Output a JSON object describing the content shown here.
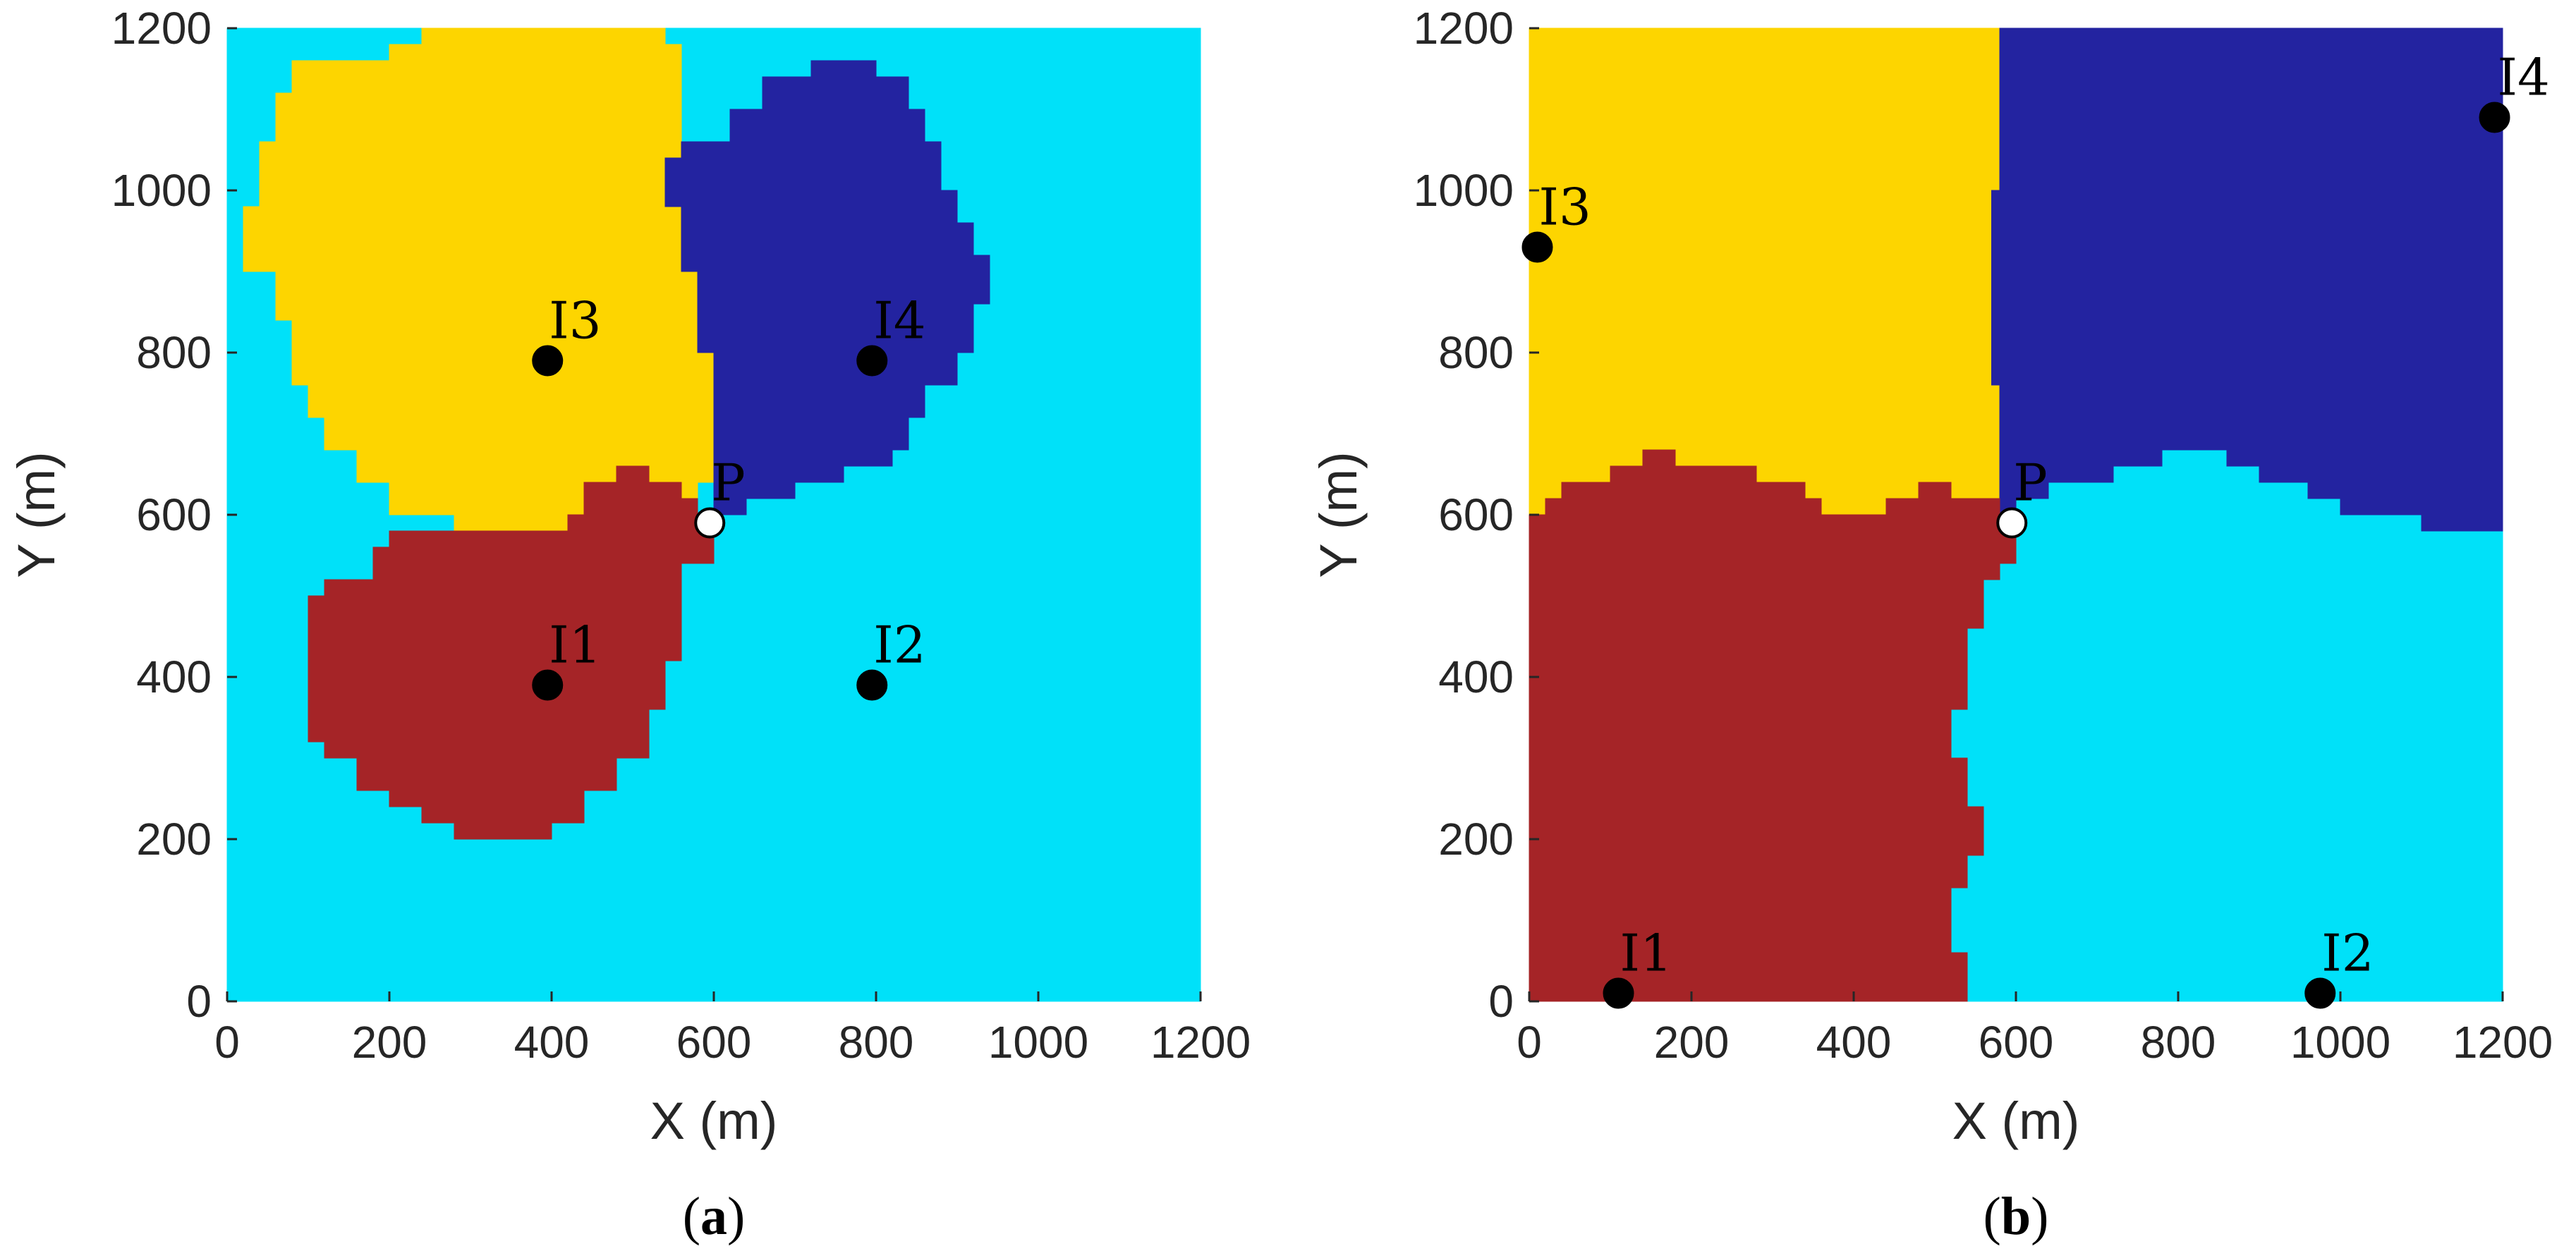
{
  "colors": {
    "background_region": "#00E1F9",
    "yellow_region": "#FDD500",
    "blue_region": "#2323A0",
    "red_region": "#A52427",
    "point_fill": "#000000",
    "P_fill": "#ffffff",
    "axis": "#262626"
  },
  "chart_data": [
    {
      "type": "scatter",
      "panel": "(a)",
      "caption_open": "(",
      "caption_letter": "a",
      "caption_close": ")",
      "xlabel": "X (m)",
      "ylabel": "Y (m)",
      "xlim": [
        0,
        1200
      ],
      "ylim": [
        0,
        1200
      ],
      "xticks": [
        "0",
        "200",
        "400",
        "600",
        "800",
        "1000",
        "1200"
      ],
      "yticks": [
        "0",
        "200",
        "400",
        "600",
        "800",
        "1000",
        "1200"
      ],
      "grid": false,
      "points": [
        {
          "label": "I1",
          "x": 395,
          "y": 390,
          "kind": "node"
        },
        {
          "label": "I2",
          "x": 795,
          "y": 390,
          "kind": "node"
        },
        {
          "label": "I3",
          "x": 395,
          "y": 790,
          "kind": "node"
        },
        {
          "label": "I4",
          "x": 795,
          "y": 790,
          "kind": "node"
        },
        {
          "label": "P",
          "x": 595,
          "y": 590,
          "kind": "target"
        }
      ],
      "regions": [
        {
          "color_key": "background_region",
          "polygon": [
            [
              0,
              0
            ],
            [
              1200,
              0
            ],
            [
              1200,
              1200
            ],
            [
              0,
              1200
            ]
          ]
        },
        {
          "color_key": "yellow_region",
          "polygon": [
            [
              240,
              1200
            ],
            [
              540,
              1200
            ],
            [
              540,
              1180
            ],
            [
              560,
              1180
            ],
            [
              560,
              1040
            ],
            [
              540,
              1040
            ],
            [
              540,
              980
            ],
            [
              560,
              980
            ],
            [
              560,
              900
            ],
            [
              580,
              900
            ],
            [
              580,
              800
            ],
            [
              600,
              800
            ],
            [
              600,
              640
            ],
            [
              580,
              640
            ],
            [
              580,
              620
            ],
            [
              560,
              620
            ],
            [
              560,
              600
            ],
            [
              500,
              600
            ],
            [
              500,
              580
            ],
            [
              280,
              580
            ],
            [
              280,
              600
            ],
            [
              200,
              600
            ],
            [
              200,
              640
            ],
            [
              160,
              640
            ],
            [
              160,
              680
            ],
            [
              120,
              680
            ],
            [
              120,
              720
            ],
            [
              100,
              720
            ],
            [
              100,
              760
            ],
            [
              80,
              760
            ],
            [
              80,
              840
            ],
            [
              60,
              840
            ],
            [
              60,
              900
            ],
            [
              20,
              900
            ],
            [
              20,
              980
            ],
            [
              40,
              980
            ],
            [
              40,
              1060
            ],
            [
              60,
              1060
            ],
            [
              60,
              1120
            ],
            [
              80,
              1120
            ],
            [
              80,
              1160
            ],
            [
              200,
              1160
            ],
            [
              200,
              1180
            ],
            [
              240,
              1180
            ]
          ]
        },
        {
          "color_key": "blue_region",
          "polygon": [
            [
              720,
              1160
            ],
            [
              800,
              1160
            ],
            [
              800,
              1140
            ],
            [
              840,
              1140
            ],
            [
              840,
              1100
            ],
            [
              860,
              1100
            ],
            [
              860,
              1060
            ],
            [
              880,
              1060
            ],
            [
              880,
              1000
            ],
            [
              900,
              1000
            ],
            [
              900,
              960
            ],
            [
              920,
              960
            ],
            [
              920,
              920
            ],
            [
              940,
              920
            ],
            [
              940,
              860
            ],
            [
              920,
              860
            ],
            [
              920,
              800
            ],
            [
              900,
              800
            ],
            [
              900,
              760
            ],
            [
              860,
              760
            ],
            [
              860,
              720
            ],
            [
              840,
              720
            ],
            [
              840,
              680
            ],
            [
              820,
              680
            ],
            [
              820,
              660
            ],
            [
              760,
              660
            ],
            [
              760,
              640
            ],
            [
              700,
              640
            ],
            [
              700,
              620
            ],
            [
              640,
              620
            ],
            [
              640,
              600
            ],
            [
              600,
              600
            ],
            [
              600,
              800
            ],
            [
              580,
              800
            ],
            [
              580,
              900
            ],
            [
              560,
              900
            ],
            [
              560,
              980
            ],
            [
              540,
              980
            ],
            [
              540,
              1040
            ],
            [
              560,
              1040
            ],
            [
              560,
              1060
            ],
            [
              620,
              1060
            ],
            [
              620,
              1100
            ],
            [
              660,
              1100
            ],
            [
              660,
              1140
            ],
            [
              720,
              1140
            ]
          ]
        },
        {
          "color_key": "red_region",
          "polygon": [
            [
              280,
              200
            ],
            [
              400,
              200
            ],
            [
              400,
              220
            ],
            [
              440,
              220
            ],
            [
              440,
              260
            ],
            [
              480,
              260
            ],
            [
              480,
              300
            ],
            [
              520,
              300
            ],
            [
              520,
              360
            ],
            [
              540,
              360
            ],
            [
              540,
              420
            ],
            [
              560,
              420
            ],
            [
              560,
              540
            ],
            [
              600,
              540
            ],
            [
              600,
              600
            ],
            [
              580,
              600
            ],
            [
              580,
              620
            ],
            [
              560,
              620
            ],
            [
              560,
              640
            ],
            [
              520,
              640
            ],
            [
              520,
              660
            ],
            [
              480,
              660
            ],
            [
              480,
              640
            ],
            [
              440,
              640
            ],
            [
              440,
              600
            ],
            [
              420,
              600
            ],
            [
              420,
              580
            ],
            [
              200,
              580
            ],
            [
              200,
              560
            ],
            [
              180,
              560
            ],
            [
              180,
              520
            ],
            [
              120,
              520
            ],
            [
              120,
              500
            ],
            [
              100,
              500
            ],
            [
              100,
              320
            ],
            [
              120,
              320
            ],
            [
              120,
              300
            ],
            [
              160,
              300
            ],
            [
              160,
              260
            ],
            [
              200,
              260
            ],
            [
              200,
              240
            ],
            [
              240,
              240
            ],
            [
              240,
              220
            ],
            [
              280,
              220
            ]
          ]
        }
      ]
    },
    {
      "type": "scatter",
      "panel": "(b)",
      "caption_open": "(",
      "caption_letter": "b",
      "caption_close": ")",
      "xlabel": "X (m)",
      "ylabel": "Y (m)",
      "xlim": [
        0,
        1200
      ],
      "ylim": [
        0,
        1200
      ],
      "xticks": [
        "0",
        "200",
        "400",
        "600",
        "800",
        "1000",
        "1200"
      ],
      "yticks": [
        "0",
        "200",
        "400",
        "600",
        "800",
        "1000",
        "1200"
      ],
      "grid": false,
      "points": [
        {
          "label": "I1",
          "x": 110,
          "y": 10,
          "kind": "node"
        },
        {
          "label": "I2",
          "x": 975,
          "y": 10,
          "kind": "node"
        },
        {
          "label": "I3",
          "x": 10,
          "y": 930,
          "kind": "node"
        },
        {
          "label": "I4",
          "x": 1190,
          "y": 1090,
          "kind": "node"
        },
        {
          "label": "P",
          "x": 595,
          "y": 590,
          "kind": "target"
        }
      ],
      "regions": [
        {
          "color_key": "background_region",
          "polygon": [
            [
              0,
              0
            ],
            [
              1200,
              0
            ],
            [
              1200,
              1200
            ],
            [
              0,
              1200
            ]
          ]
        },
        {
          "color_key": "yellow_region",
          "polygon": [
            [
              0,
              600
            ],
            [
              20,
              600
            ],
            [
              20,
              620
            ],
            [
              40,
              620
            ],
            [
              40,
              640
            ],
            [
              100,
              640
            ],
            [
              100,
              660
            ],
            [
              140,
              660
            ],
            [
              140,
              680
            ],
            [
              180,
              680
            ],
            [
              180,
              660
            ],
            [
              280,
              660
            ],
            [
              280,
              640
            ],
            [
              340,
              640
            ],
            [
              340,
              620
            ],
            [
              360,
              620
            ],
            [
              360,
              600
            ],
            [
              440,
              600
            ],
            [
              440,
              620
            ],
            [
              480,
              620
            ],
            [
              480,
              640
            ],
            [
              520,
              640
            ],
            [
              520,
              620
            ],
            [
              580,
              620
            ],
            [
              580,
              600
            ],
            [
              580,
              600
            ],
            [
              580,
              760
            ],
            [
              570,
              760
            ],
            [
              570,
              1000
            ],
            [
              580,
              1000
            ],
            [
              580,
              1200
            ],
            [
              0,
              1200
            ]
          ]
        },
        {
          "color_key": "blue_region",
          "polygon": [
            [
              580,
              1200
            ],
            [
              1200,
              1200
            ],
            [
              1200,
              580
            ],
            [
              1100,
              580
            ],
            [
              1100,
              600
            ],
            [
              1000,
              600
            ],
            [
              1000,
              620
            ],
            [
              960,
              620
            ],
            [
              960,
              640
            ],
            [
              900,
              640
            ],
            [
              900,
              660
            ],
            [
              860,
              660
            ],
            [
              860,
              680
            ],
            [
              780,
              680
            ],
            [
              780,
              660
            ],
            [
              720,
              660
            ],
            [
              720,
              640
            ],
            [
              640,
              640
            ],
            [
              640,
              620
            ],
            [
              600,
              620
            ],
            [
              600,
              600
            ],
            [
              580,
              600
            ],
            [
              580,
              760
            ],
            [
              570,
              760
            ],
            [
              570,
              1000
            ],
            [
              580,
              1000
            ]
          ]
        },
        {
          "color_key": "red_region",
          "polygon": [
            [
              0,
              0
            ],
            [
              540,
              0
            ],
            [
              540,
              60
            ],
            [
              520,
              60
            ],
            [
              520,
              140
            ],
            [
              540,
              140
            ],
            [
              540,
              180
            ],
            [
              560,
              180
            ],
            [
              560,
              240
            ],
            [
              540,
              240
            ],
            [
              540,
              300
            ],
            [
              520,
              300
            ],
            [
              520,
              360
            ],
            [
              540,
              360
            ],
            [
              540,
              460
            ],
            [
              560,
              460
            ],
            [
              560,
              520
            ],
            [
              580,
              520
            ],
            [
              580,
              540
            ],
            [
              600,
              540
            ],
            [
              600,
              600
            ],
            [
              580,
              600
            ],
            [
              580,
              620
            ],
            [
              520,
              620
            ],
            [
              520,
              640
            ],
            [
              480,
              640
            ],
            [
              480,
              620
            ],
            [
              440,
              620
            ],
            [
              440,
              600
            ],
            [
              360,
              600
            ],
            [
              360,
              620
            ],
            [
              340,
              620
            ],
            [
              340,
              640
            ],
            [
              280,
              640
            ],
            [
              280,
              660
            ],
            [
              180,
              660
            ],
            [
              180,
              680
            ],
            [
              140,
              680
            ],
            [
              140,
              660
            ],
            [
              100,
              660
            ],
            [
              100,
              640
            ],
            [
              40,
              640
            ],
            [
              40,
              620
            ],
            [
              20,
              620
            ],
            [
              20,
              600
            ],
            [
              0,
              600
            ]
          ]
        }
      ]
    }
  ]
}
